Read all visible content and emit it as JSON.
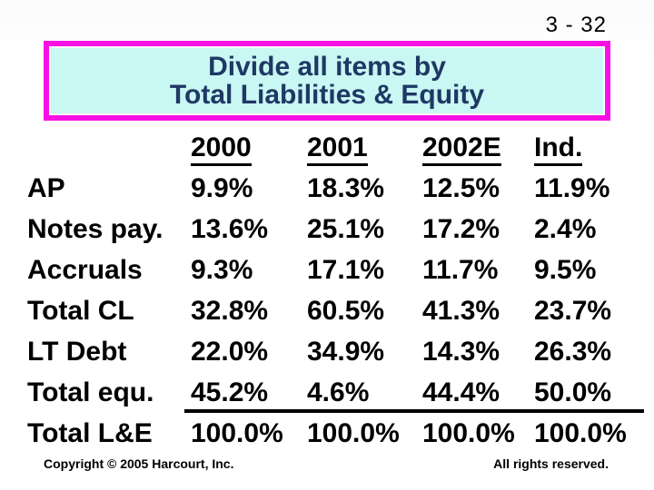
{
  "page_number": "3 - 32",
  "title": {
    "line1": "Divide all items by",
    "line2": "Total Liabilities & Equity"
  },
  "table": {
    "columns": [
      "2000",
      "2001",
      "2002E",
      "Ind."
    ],
    "rows": [
      {
        "label": "AP",
        "values": [
          "9.9%",
          "18.3%",
          "12.5%",
          "11.9%"
        ]
      },
      {
        "label": "Notes pay.",
        "values": [
          "13.6%",
          "25.1%",
          "17.2%",
          "2.4%"
        ]
      },
      {
        "label": "Accruals",
        "values": [
          "9.3%",
          "17.1%",
          "11.7%",
          "9.5%"
        ]
      },
      {
        "label": "Total CL",
        "values": [
          "32.8%",
          "60.5%",
          "41.3%",
          "23.7%"
        ]
      },
      {
        "label": "LT Debt",
        "values": [
          "22.0%",
          "34.9%",
          "14.3%",
          "26.3%"
        ]
      },
      {
        "label": "Total equ.",
        "values": [
          "45.2%",
          "4.6%",
          "44.4%",
          "50.0%"
        ]
      },
      {
        "label": "Total L&E",
        "values": [
          "100.0%",
          "100.0%",
          "100.0%",
          "100.0%"
        ]
      }
    ]
  },
  "footer": {
    "left": "Copyright © 2005 Harcourt, Inc.",
    "right": "All rights reserved."
  },
  "colors": {
    "title_border": "#f711e3",
    "title_background": "#c9f7f3",
    "title_text": "#1f3864",
    "body_text": "#000000"
  }
}
